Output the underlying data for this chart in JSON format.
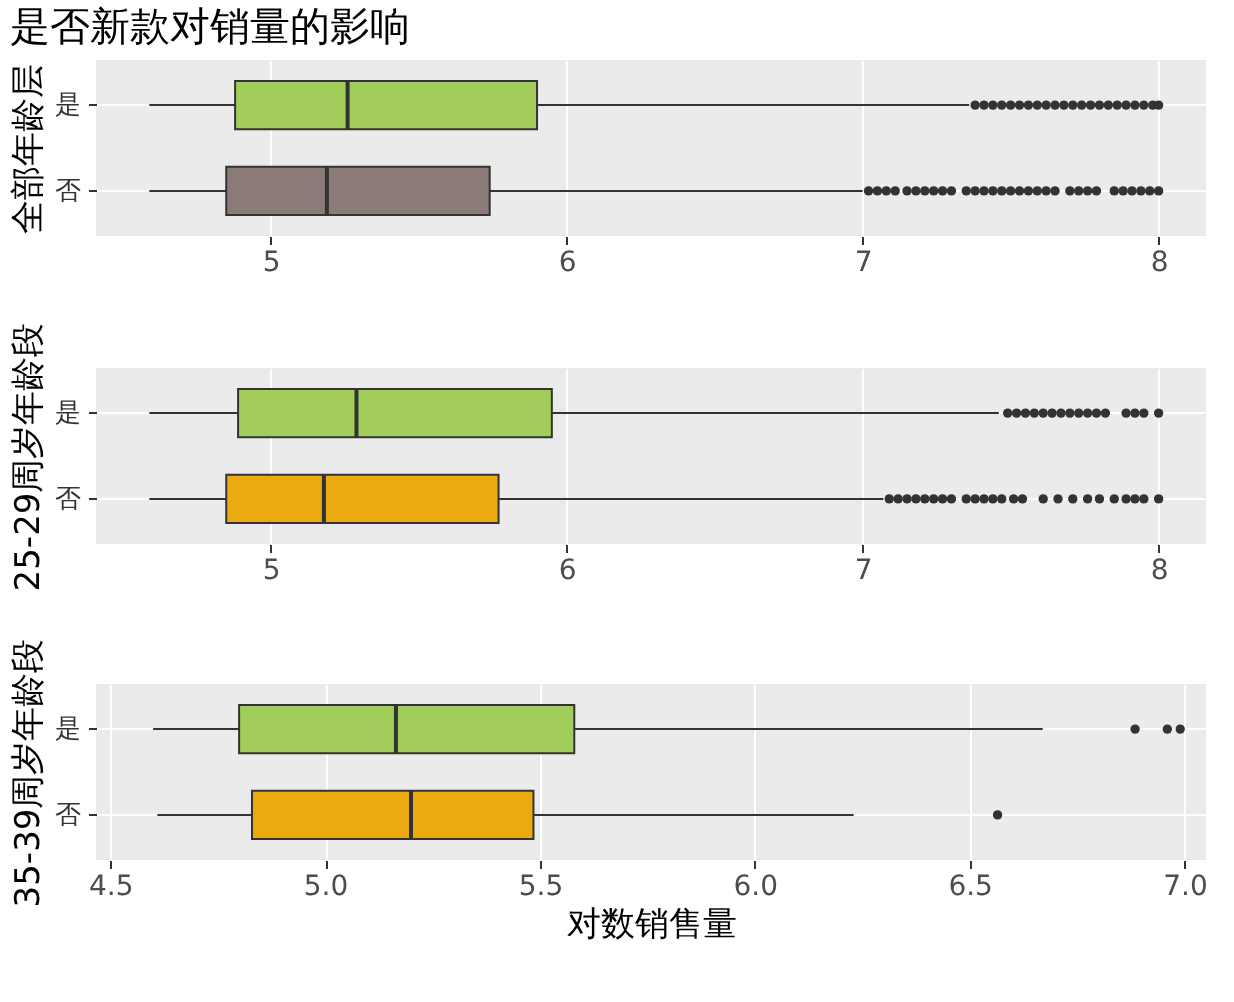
{
  "chart_data": [
    {
      "type": "box",
      "title": "是否新款对销量的影响",
      "ylabel": "全部年龄层",
      "orientation": "horizontal",
      "categories": [
        "是",
        "否"
      ],
      "colors": [
        "#a3cd5b",
        "#8b7b78"
      ],
      "xlim": [
        4.41,
        8.16
      ],
      "xticks": [
        5,
        6,
        7,
        8
      ],
      "grid": true,
      "boxes": [
        {
          "low": 4.59,
          "q1": 4.88,
          "median": 5.26,
          "q3": 5.9,
          "high": 7.36,
          "outliers": [
            7.38,
            7.41,
            7.44,
            7.47,
            7.5,
            7.53,
            7.56,
            7.59,
            7.62,
            7.65,
            7.68,
            7.71,
            7.74,
            7.77,
            7.8,
            7.83,
            7.86,
            7.89,
            7.92,
            7.95,
            7.98,
            8.0
          ]
        },
        {
          "low": 4.59,
          "q1": 4.85,
          "median": 5.19,
          "q3": 5.74,
          "high": 7.0,
          "outliers": [
            7.02,
            7.05,
            7.08,
            7.11,
            7.15,
            7.18,
            7.21,
            7.24,
            7.27,
            7.3,
            7.35,
            7.38,
            7.41,
            7.44,
            7.47,
            7.5,
            7.53,
            7.56,
            7.59,
            7.62,
            7.65,
            7.7,
            7.73,
            7.76,
            7.79,
            7.85,
            7.88,
            7.91,
            7.94,
            7.97,
            8.0
          ]
        }
      ]
    },
    {
      "type": "box",
      "ylabel": "25-29周岁年龄段",
      "orientation": "horizontal",
      "categories": [
        "是",
        "否"
      ],
      "colors": [
        "#a3cd5b",
        "#ebab10"
      ],
      "xlim": [
        4.41,
        8.16
      ],
      "xticks": [
        5,
        6,
        7,
        8
      ],
      "grid": true,
      "boxes": [
        {
          "low": 4.59,
          "q1": 4.89,
          "median": 5.29,
          "q3": 5.95,
          "high": 7.46,
          "outliers": [
            7.49,
            7.52,
            7.55,
            7.58,
            7.61,
            7.64,
            7.67,
            7.7,
            7.73,
            7.76,
            7.79,
            7.82,
            7.89,
            7.92,
            7.95,
            8.0
          ]
        },
        {
          "low": 4.59,
          "q1": 4.85,
          "median": 5.18,
          "q3": 5.77,
          "high": 7.07,
          "outliers": [
            7.09,
            7.12,
            7.15,
            7.18,
            7.21,
            7.24,
            7.27,
            7.3,
            7.35,
            7.38,
            7.41,
            7.44,
            7.47,
            7.51,
            7.54,
            7.61,
            7.66,
            7.71,
            7.76,
            7.8,
            7.85,
            7.89,
            7.92,
            7.95,
            8.0
          ]
        }
      ]
    },
    {
      "type": "box",
      "ylabel": "35-39周岁年龄段",
      "xlabel": "对数销售量",
      "orientation": "horizontal",
      "categories": [
        "是",
        "否"
      ],
      "colors": [
        "#a3cd5b",
        "#ebab10"
      ],
      "xlim": [
        4.467,
        7.05
      ],
      "xticks": [
        {
          "value": 4.5,
          "label": "4.5"
        },
        {
          "value": 5,
          "label": "5.0"
        },
        {
          "value": 5.5,
          "label": "5.5"
        },
        {
          "value": 6,
          "label": "6.0"
        },
        {
          "value": 6.5,
          "label": "6.5"
        },
        {
          "value": 7,
          "label": "7.0"
        }
      ],
      "grid": true,
      "boxes": [
        {
          "low": 4.6,
          "q1": 4.8,
          "median": 5.165,
          "q3": 5.58,
          "high": 6.67,
          "outliers": [
            6.885,
            6.96,
            6.99
          ]
        },
        {
          "low": 4.61,
          "q1": 4.83,
          "median": 5.2,
          "q3": 5.485,
          "high": 6.23,
          "outliers": [
            6.565
          ]
        }
      ]
    }
  ]
}
